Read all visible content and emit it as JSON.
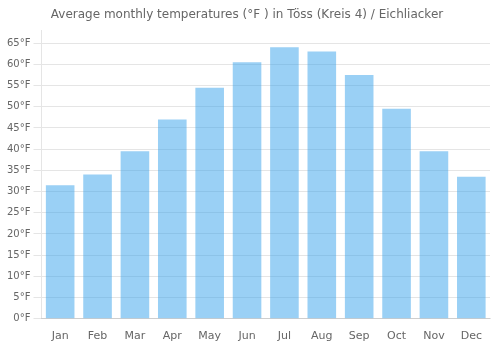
{
  "chart_data": {
    "type": "bar",
    "title": "Average monthly temperatures (°F ) in Töss (Kreis 4) / Eichliacker",
    "categories": [
      "Jan",
      "Feb",
      "Mar",
      "Apr",
      "May",
      "Jun",
      "Jul",
      "Aug",
      "Sep",
      "Oct",
      "Nov",
      "Dec"
    ],
    "values": [
      31.5,
      34.0,
      39.5,
      47.0,
      54.5,
      60.5,
      64.0,
      63.0,
      57.5,
      49.5,
      39.5,
      33.5
    ],
    "ylim": [
      0,
      68
    ],
    "yticks": [
      {
        "value": 0,
        "label": "0°F"
      },
      {
        "value": 5,
        "label": "5°F"
      },
      {
        "value": 10,
        "label": "10°F"
      },
      {
        "value": 15,
        "label": "15°F"
      },
      {
        "value": 20,
        "label": "20°F"
      },
      {
        "value": 25,
        "label": "25°F"
      },
      {
        "value": 30,
        "label": "30°F"
      },
      {
        "value": 35,
        "label": "35°F"
      },
      {
        "value": 40,
        "label": "40°F"
      },
      {
        "value": 45,
        "label": "45°F"
      },
      {
        "value": 50,
        "label": "50°F"
      },
      {
        "value": 55,
        "label": "55°F"
      },
      {
        "value": 60,
        "label": "60°F"
      },
      {
        "value": 65,
        "label": "65°F"
      }
    ],
    "grid": true
  }
}
